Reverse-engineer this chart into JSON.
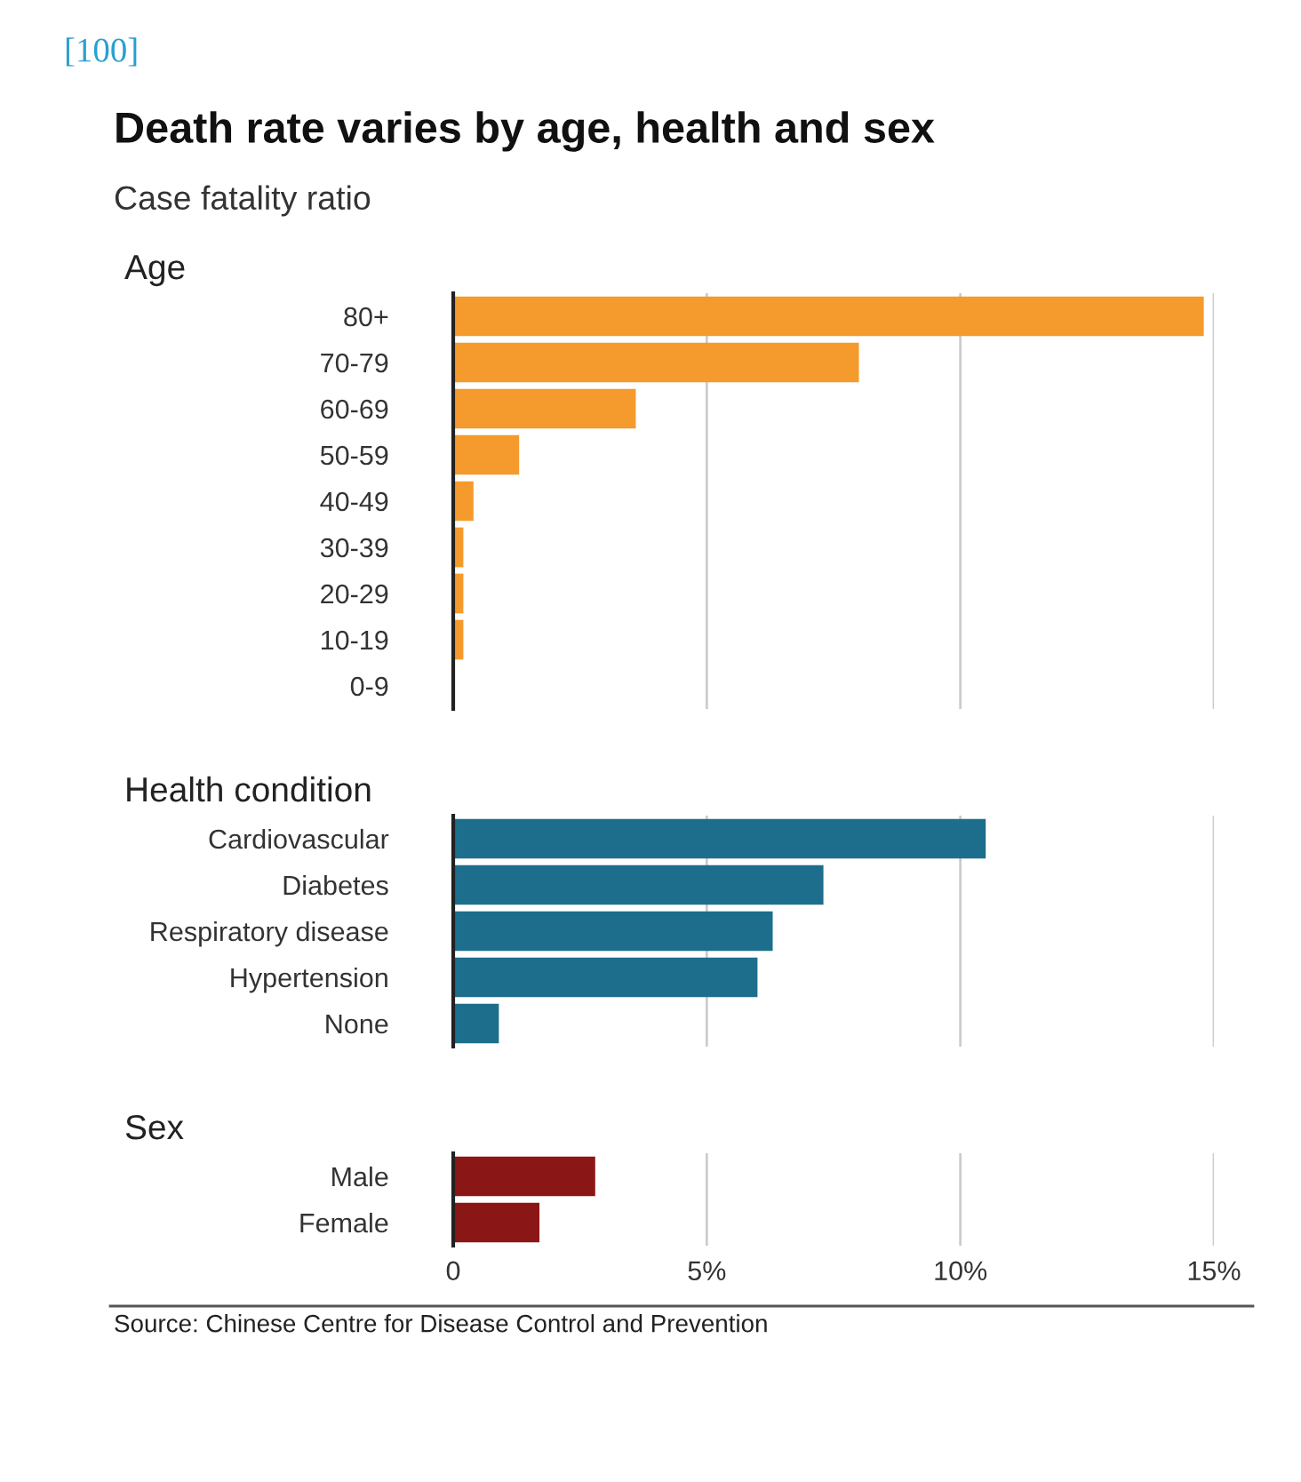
{
  "chart_data": [
    {
      "type": "bar",
      "orientation": "horizontal",
      "title": "Death rate varies by age, health and sex",
      "subtitle": "Case fatality ratio",
      "ylabel": "Age",
      "annotations": [
        "[100]"
      ],
      "categories": [
        "80+",
        "70-79",
        "60-69",
        "50-59",
        "40-49",
        "30-39",
        "20-29",
        "10-19",
        "0-9"
      ],
      "values": [
        14.8,
        8.0,
        3.6,
        1.3,
        0.4,
        0.2,
        0.2,
        0.2,
        0
      ],
      "color": "#f59a2c",
      "xlim": [
        0,
        15
      ],
      "xticks": [
        {
          "value": 5,
          "label": null
        },
        {
          "value": 10,
          "label": null
        },
        {
          "value": 15,
          "label": null
        }
      ],
      "grid": "x",
      "tick_labels": "y"
    },
    {
      "type": "bar",
      "orientation": "horizontal",
      "ylabel": "Health condition",
      "categories": [
        "Cardiovascular",
        "Diabetes",
        "Respiratory disease",
        "Hypertension",
        "None"
      ],
      "values": [
        10.5,
        7.3,
        6.3,
        6.0,
        0.9
      ],
      "color": "#1c6e8c",
      "xlim": [
        0,
        15
      ],
      "xticks": [
        {
          "value": 5,
          "label": null
        },
        {
          "value": 10,
          "label": null
        },
        {
          "value": 15,
          "label": null
        }
      ],
      "grid": "x",
      "tick_labels": "y"
    },
    {
      "type": "bar",
      "orientation": "horizontal",
      "ylabel": "Sex",
      "annotations": [
        "Source: Chinese Centre for Disease Control and Prevention"
      ],
      "categories": [
        "Male",
        "Female"
      ],
      "values": [
        2.8,
        1.7
      ],
      "color": "#8b1616",
      "xlim": [
        0,
        15
      ],
      "xticks": [
        0,
        {
          "value": 5,
          "label": "5%"
        },
        {
          "value": 10,
          "label": "10%"
        },
        {
          "value": 15,
          "label": "15%"
        }
      ],
      "grid": "x"
    }
  ]
}
